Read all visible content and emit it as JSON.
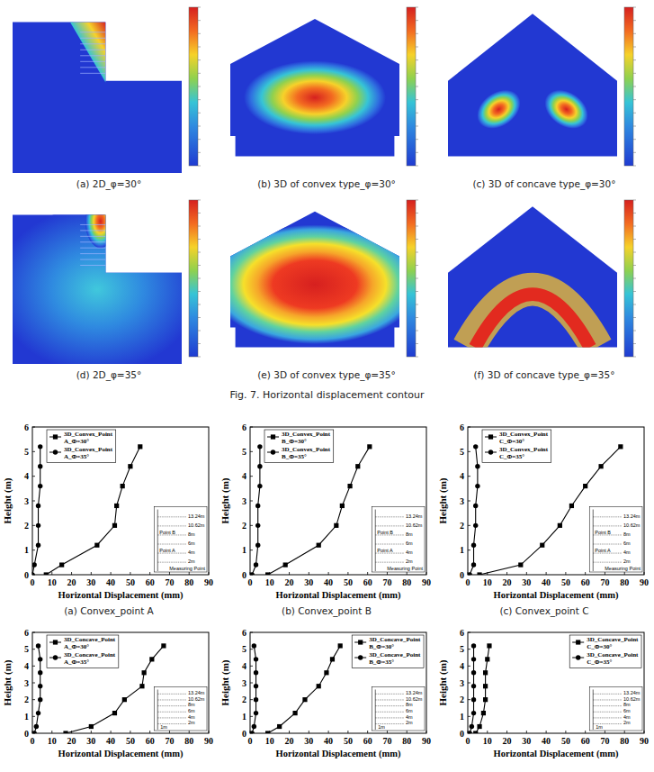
{
  "figure": {
    "caption": "Fig. 7. Horizontal displacement contour",
    "panels": [
      {
        "label": "(a) 2D_φ=30°",
        "model": "2D",
        "friction_angle": 30
      },
      {
        "label": "(b) 3D of convex type_φ=30°",
        "model": "convex",
        "friction_angle": 30
      },
      {
        "label": "(c) 3D of concave type_φ=30°",
        "model": "concave",
        "friction_angle": 30
      },
      {
        "label": "(d) 2D_φ=35°",
        "model": "2D",
        "friction_angle": 35
      },
      {
        "label": "(e) 3D of convex type_φ=35°",
        "model": "convex",
        "friction_angle": 35
      },
      {
        "label": "(f) 3D of concave type_φ=35°",
        "model": "concave",
        "friction_angle": 35
      }
    ]
  },
  "chart_data": [
    {
      "type": "line",
      "title": "(a) Convex_point A",
      "xlabel": "Horizontal Displacement (mm)",
      "ylabel": "Height (m)",
      "xlim": [
        0,
        90
      ],
      "xticks": [
        0,
        10,
        20,
        30,
        40,
        50,
        60,
        70,
        80,
        90
      ],
      "ylim": [
        0,
        6
      ],
      "yticks": [
        0,
        1,
        2,
        3,
        4,
        5,
        6
      ],
      "legend": "upper left",
      "series": [
        {
          "name": "3D_Convex_Point A_Φ=30°",
          "color": "#000000",
          "marker": "square",
          "x": [
            7,
            15,
            33,
            42,
            43,
            46,
            50,
            55
          ],
          "values": [
            0,
            0.4,
            1.2,
            2,
            2.8,
            3.6,
            4.4,
            5.2
          ]
        },
        {
          "name": "3D_Convex_Point A_Φ=35°",
          "color": "#000000",
          "marker": "circle",
          "x": [
            0,
            1,
            3,
            3,
            3,
            4,
            4,
            4
          ],
          "values": [
            0,
            0.4,
            1.2,
            2,
            2.8,
            3.6,
            4.4,
            5.2
          ]
        }
      ],
      "inset_labels": {
        "heights": [
          "13.24m",
          "10.62m",
          "8m",
          "6m",
          "4m",
          "2m"
        ],
        "point_labels": [
          {
            "text": "Point B",
            "at": "8m"
          },
          {
            "text": "Point A",
            "at": "4m"
          }
        ],
        "measuring_point": "Measuring Point"
      }
    },
    {
      "type": "line",
      "title": "(b) Convex_point B",
      "xlabel": "Horizontal Displacement (mm)",
      "ylabel": "Height (m)",
      "xlim": [
        0,
        90
      ],
      "xticks": [
        0,
        10,
        20,
        30,
        40,
        50,
        60,
        70,
        80,
        90
      ],
      "ylim": [
        0,
        6
      ],
      "yticks": [
        0,
        1,
        2,
        3,
        4,
        5,
        6
      ],
      "legend": "upper left",
      "series": [
        {
          "name": "3D_Convex_Point B_Φ=30°",
          "color": "#000000",
          "marker": "square",
          "x": [
            9,
            18,
            35,
            44,
            47,
            51,
            55,
            61
          ],
          "values": [
            0,
            0.4,
            1.2,
            2,
            2.8,
            3.6,
            4.4,
            5.2
          ]
        },
        {
          "name": "3D_Convex_Point B_Φ=35°",
          "color": "#000000",
          "marker": "circle",
          "x": [
            1,
            3,
            4,
            4,
            4,
            5,
            5,
            5
          ],
          "values": [
            0,
            0.4,
            1.2,
            2,
            2.8,
            3.6,
            4.4,
            5.2
          ]
        }
      ],
      "inset_labels": {
        "heights": [
          "13.24m",
          "10.62m",
          "8m",
          "6m",
          "4m",
          "2m"
        ],
        "point_labels": [
          {
            "text": "Point B",
            "at": "8m"
          },
          {
            "text": "Point A",
            "at": "4m"
          }
        ],
        "measuring_point": "Measuring Point"
      }
    },
    {
      "type": "line",
      "title": "(c) Convex_point C",
      "xlabel": "Horizontal Displacement (mm)",
      "ylabel": "Height (m)",
      "xlim": [
        0,
        90
      ],
      "xticks": [
        0,
        10,
        20,
        30,
        40,
        50,
        60,
        70,
        80,
        90
      ],
      "ylim": [
        0,
        6
      ],
      "yticks": [
        0,
        1,
        2,
        3,
        4,
        5,
        6
      ],
      "legend": "upper left",
      "series": [
        {
          "name": "3D_Convex_Point C_Φ=30°",
          "color": "#000000",
          "marker": "square",
          "x": [
            6,
            27,
            38,
            47,
            53,
            60,
            68,
            78
          ],
          "values": [
            0,
            0.4,
            1.2,
            2,
            2.8,
            3.6,
            4.4,
            5.2
          ]
        },
        {
          "name": "3D_Convex_Point C_Φ=35°",
          "color": "#000000",
          "marker": "circle",
          "x": [
            1,
            3,
            3,
            4,
            4,
            5,
            5,
            4
          ],
          "values": [
            0,
            0.4,
            1.2,
            2,
            2.8,
            3.6,
            4.4,
            5.2
          ]
        }
      ],
      "inset_labels": {
        "heights": [
          "13.24m",
          "10.62m",
          "8m",
          "6m",
          "4m",
          "2m"
        ],
        "point_labels": [
          {
            "text": "Point B",
            "at": "8m"
          },
          {
            "text": "Point A",
            "at": "4m"
          }
        ],
        "measuring_point": "Measuring Point"
      }
    },
    {
      "type": "line",
      "xlabel": "Horizontal Displacement (mm)",
      "ylabel": "Height (m)",
      "xlim": [
        0,
        90
      ],
      "xticks": [
        0,
        10,
        20,
        30,
        40,
        50,
        60,
        70,
        80,
        90
      ],
      "ylim": [
        0,
        6
      ],
      "yticks": [
        0,
        1,
        2,
        3,
        4,
        5,
        6
      ],
      "legend": "upper left",
      "series": [
        {
          "name": "3D_Concave_Point A_Φ=30°",
          "color": "#000000",
          "marker": "square",
          "x": [
            17,
            30,
            42,
            47,
            56,
            57,
            61,
            67
          ],
          "values": [
            0,
            0.4,
            1.2,
            2,
            2.8,
            3.6,
            4.4,
            5.2
          ]
        },
        {
          "name": "3D_Concave_Point A_Φ=35°",
          "color": "#000000",
          "marker": "circle",
          "x": [
            1,
            2,
            3,
            4,
            4,
            4,
            4,
            3
          ],
          "values": [
            0,
            0.4,
            1.2,
            2,
            2.8,
            3.6,
            4.4,
            5.2
          ]
        }
      ],
      "inset_labels": {
        "heights": [
          "13.24m",
          "10.62m",
          "8m",
          "6m",
          "4m",
          "2m"
        ],
        "width": "1m"
      }
    },
    {
      "type": "line",
      "xlabel": "Horizontal Displacement (mm)",
      "ylabel": "Height (m)",
      "xlim": [
        0,
        90
      ],
      "xticks": [
        0,
        10,
        20,
        30,
        40,
        50,
        60,
        70,
        80,
        90
      ],
      "ylim": [
        0,
        6
      ],
      "yticks": [
        0,
        1,
        2,
        3,
        4,
        5,
        6
      ],
      "legend": "upper right",
      "series": [
        {
          "name": "3D_Concave_Point B_Φ=30°",
          "color": "#000000",
          "marker": "square",
          "x": [
            9,
            15,
            23,
            28,
            35,
            39,
            42,
            46
          ],
          "values": [
            0,
            0.4,
            1.2,
            2,
            2.8,
            3.6,
            4.4,
            5.2
          ]
        },
        {
          "name": "3D_Concave_Point B_Φ=35°",
          "color": "#000000",
          "marker": "circle",
          "x": [
            1,
            2,
            3,
            3,
            3,
            3,
            3,
            2
          ],
          "values": [
            0,
            0.4,
            1.2,
            2,
            2.8,
            3.6,
            4.4,
            5.2
          ]
        }
      ],
      "inset_labels": {
        "heights": [
          "13.24m",
          "10.62m",
          "8m",
          "6m",
          "4m",
          "2m"
        ],
        "width": "1m"
      }
    },
    {
      "type": "line",
      "xlabel": "Horizontal Displacement (mm)",
      "ylabel": "Height (m)",
      "xlim": [
        0,
        90
      ],
      "xticks": [
        0,
        10,
        20,
        30,
        40,
        50,
        60,
        70,
        80,
        90
      ],
      "ylim": [
        0,
        6
      ],
      "yticks": [
        0,
        1,
        2,
        3,
        4,
        5,
        6
      ],
      "legend": "upper right",
      "series": [
        {
          "name": "3D_Concave_Point C_Φ=30°",
          "color": "#000000",
          "marker": "square",
          "x": [
            4,
            6,
            8,
            9,
            9,
            9,
            10,
            11
          ],
          "values": [
            0,
            0.4,
            1.2,
            2,
            2.8,
            3.6,
            4.4,
            5.2
          ]
        },
        {
          "name": "3D_Concave_Point C_Φ=35°",
          "color": "#000000",
          "marker": "circle",
          "x": [
            1,
            2,
            3,
            3,
            3,
            3,
            3,
            3
          ],
          "values": [
            0,
            0.4,
            1.2,
            2,
            2.8,
            3.6,
            4.4,
            5.2
          ]
        }
      ],
      "inset_labels": {
        "heights": [
          "13.24m",
          "10.62m",
          "8m",
          "6m",
          "4m",
          "2m"
        ],
        "width": "1m"
      }
    }
  ]
}
